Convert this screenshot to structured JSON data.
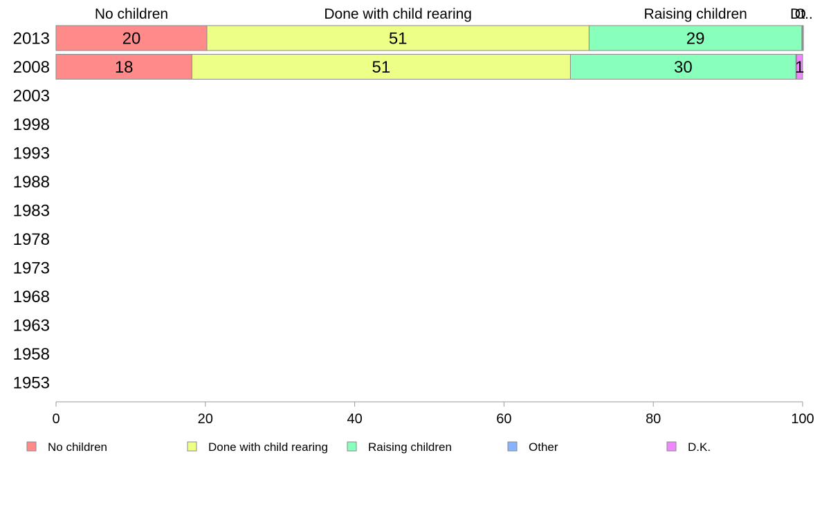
{
  "chart_data": {
    "type": "bar",
    "orientation": "horizontal",
    "stacked": true,
    "rows": [
      "2013",
      "2008",
      "2003",
      "1998",
      "1993",
      "1988",
      "1983",
      "1978",
      "1973",
      "1968",
      "1963",
      "1958",
      "1953"
    ],
    "series": [
      {
        "name": "No children",
        "color": "#ff8a8a",
        "values": [
          20.2,
          18.2,
          null,
          null,
          null,
          null,
          null,
          null,
          null,
          null,
          null,
          null,
          null
        ],
        "labels": [
          "20",
          "18",
          null,
          null,
          null,
          null,
          null,
          null,
          null,
          null,
          null,
          null,
          null
        ]
      },
      {
        "name": "Done with child rearing",
        "color": "#eeff88",
        "values": [
          51.2,
          50.7,
          null,
          null,
          null,
          null,
          null,
          null,
          null,
          null,
          null,
          null,
          null
        ],
        "labels": [
          "51",
          "51",
          null,
          null,
          null,
          null,
          null,
          null,
          null,
          null,
          null,
          null,
          null
        ]
      },
      {
        "name": "Raising children",
        "color": "#88ffbb",
        "values": [
          28.5,
          30.2,
          null,
          null,
          null,
          null,
          null,
          null,
          null,
          null,
          null,
          null,
          null
        ],
        "labels": [
          "29",
          "30",
          null,
          null,
          null,
          null,
          null,
          null,
          null,
          null,
          null,
          null,
          null
        ]
      },
      {
        "name": "Other",
        "color": "#88b4ff",
        "values": [
          0.1,
          0.1,
          null,
          null,
          null,
          null,
          null,
          null,
          null,
          null,
          null,
          null,
          null
        ],
        "labels": [
          null,
          null,
          null,
          null,
          null,
          null,
          null,
          null,
          null,
          null,
          null,
          null,
          null
        ]
      },
      {
        "name": "D.K.",
        "color": "#ee88ff",
        "values": [
          0.1,
          0.8,
          null,
          null,
          null,
          null,
          null,
          null,
          null,
          null,
          null,
          null,
          null
        ],
        "labels": [
          null,
          "1",
          null,
          null,
          null,
          null,
          null,
          null,
          null,
          null,
          null,
          null,
          null
        ]
      }
    ],
    "top_category_labels": [
      "No children",
      "Done with child rearing",
      "Raising children",
      "O",
      "Dt.."
    ],
    "x_ticks": [
      "0",
      "20",
      "40",
      "60",
      "80",
      "100"
    ],
    "xlim": [
      0,
      100
    ],
    "grid": false,
    "legend_position": "bottom"
  }
}
